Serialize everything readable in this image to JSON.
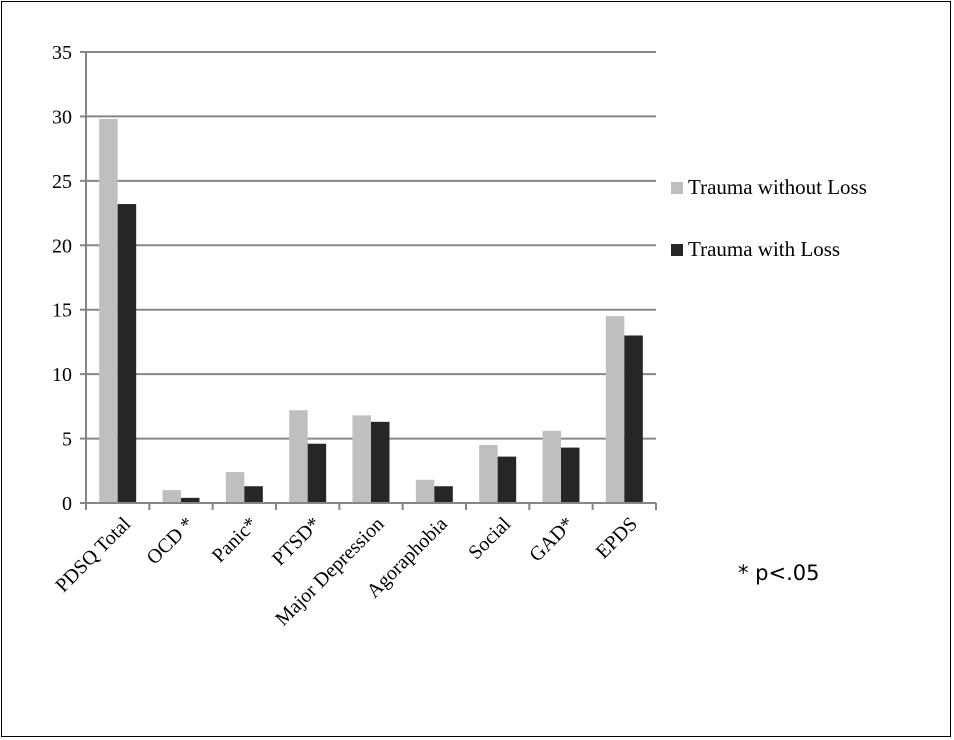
{
  "chart_data": {
    "type": "bar",
    "categories": [
      "PDSQ Total",
      "OCD *",
      "Panic*",
      "PTSD*",
      "Major Depression",
      "Agoraphobia",
      "Social",
      "GAD*",
      "EPDS"
    ],
    "series": [
      {
        "name": "Trauma without Loss",
        "color": "#bfbfbf",
        "values": [
          29.8,
          1.0,
          2.4,
          7.2,
          6.8,
          1.8,
          4.5,
          5.6,
          14.5
        ]
      },
      {
        "name": "Trauma with Loss",
        "color": "#262626",
        "values": [
          23.2,
          0.4,
          1.3,
          4.6,
          6.3,
          1.3,
          3.6,
          4.3,
          13.0
        ]
      }
    ],
    "ylim": [
      0,
      35
    ],
    "yticks": [
      0,
      5,
      10,
      15,
      20,
      25,
      30,
      35
    ],
    "grid": true,
    "legend_position": "right",
    "annotation": "* p<.05"
  }
}
